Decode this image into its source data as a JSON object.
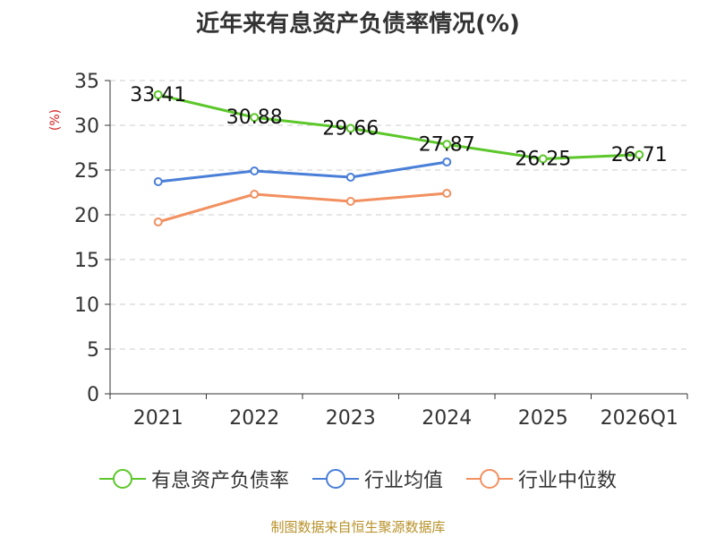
{
  "chart_data": {
    "type": "line",
    "title": "近年来有息资产负债率情况(%)",
    "ylabel": "(%)",
    "xlabel": "",
    "categories": [
      "2021",
      "2022",
      "2023",
      "2024",
      "2025",
      "2026Q1"
    ],
    "ylim": [
      0,
      35
    ],
    "yticks": [
      0,
      5,
      10,
      15,
      20,
      25,
      30,
      35
    ],
    "grid": true,
    "legend_position": "bottom",
    "series": [
      {
        "name": "有息资产负债率",
        "color": "#5cc72a",
        "values": [
          33.41,
          30.88,
          29.66,
          27.87,
          26.25,
          26.71
        ],
        "labels": true
      },
      {
        "name": "行业均值",
        "color": "#4a7fd8",
        "values": [
          23.7,
          24.9,
          24.2,
          25.9,
          null,
          null
        ],
        "labels": false
      },
      {
        "name": "行业中位数",
        "color": "#f29060",
        "values": [
          19.2,
          22.3,
          21.5,
          22.4,
          null,
          null
        ],
        "labels": false
      }
    ]
  },
  "source": "制图数据来自恒生聚源数据库"
}
